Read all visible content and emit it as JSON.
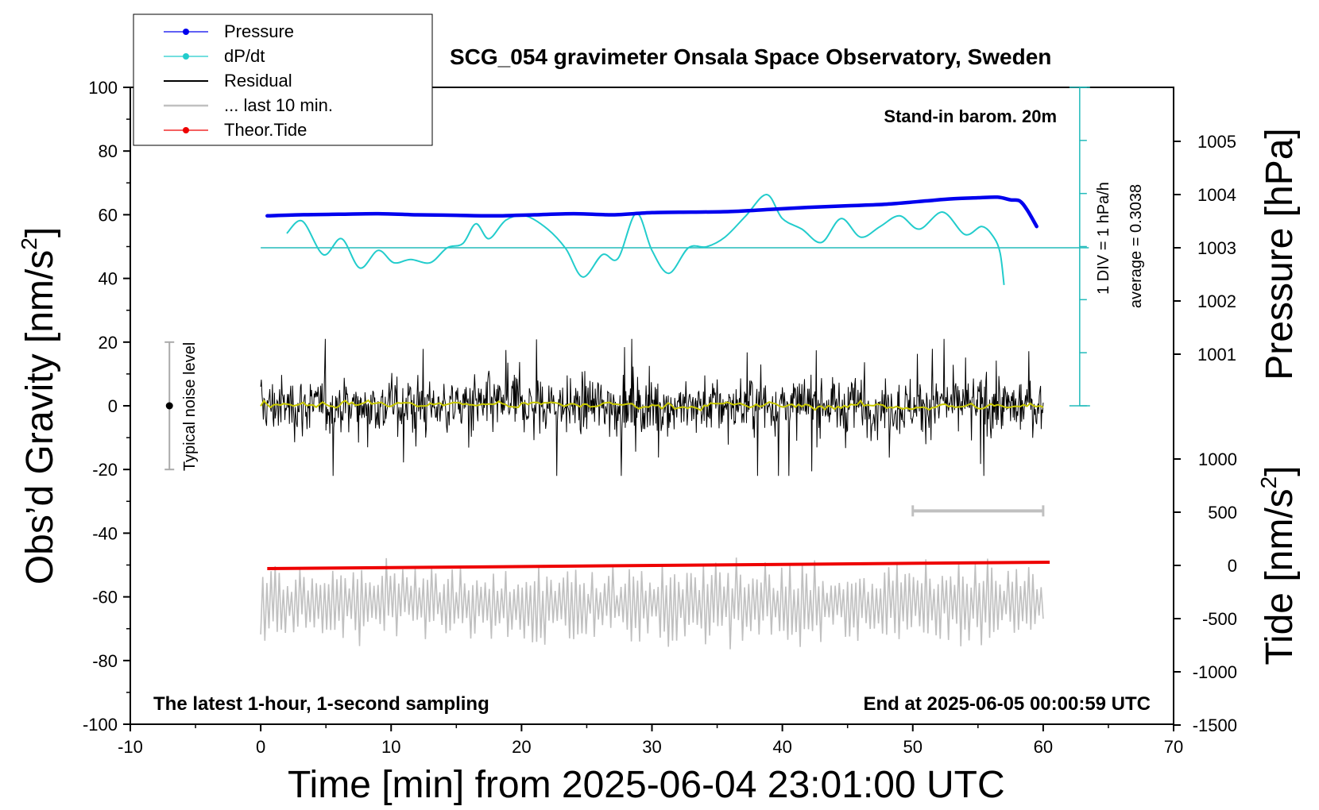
{
  "chart_data": {
    "type": "line",
    "title": "SCG_054 gravimeter Onsala Space Observatory, Sweden",
    "xlabel": "Time [min] from 2025-06-04 23:01:00 UTC",
    "ylabel_left_main": "Obs’d Gravity [nm/s",
    "ylabel_left_sup": "2",
    "ylabel_left_tail": "]",
    "ylabel_pressure": "Pressure [hPa]",
    "ylabel_tide_main": "Tide [nm/s",
    "ylabel_tide_sup": "2",
    "ylabel_tide_tail": "]",
    "xlim": [
      -10,
      70
    ],
    "ylim": [
      -100,
      100
    ],
    "pressure_lim": [
      1000,
      1006
    ],
    "tide_lim": [
      -1500,
      1500
    ],
    "grid": false,
    "legend_placement": "top-left",
    "x_ticks": [
      "-10",
      "0",
      "10",
      "20",
      "30",
      "40",
      "50",
      "60",
      "70"
    ],
    "y_ticks": [
      "100",
      "80",
      "60",
      "40",
      "20",
      "0",
      "-20",
      "-40",
      "-60",
      "-80",
      "-100"
    ],
    "pressure_ticks": [
      "1005",
      "1004",
      "1003",
      "1002",
      "1001"
    ],
    "tide_ticks": [
      "1000",
      "500",
      "0",
      "-500",
      "-1000",
      "-1500"
    ],
    "annotations": {
      "stand_in": "Stand-in barom. 20m",
      "div": "1 DIV = 1 hPa/h",
      "average": "average = 0.3038",
      "noise": "Typical noise level",
      "latest": "The latest 1-hour, 1-second sampling",
      "end": "End at 2025-06-05 00:00:59 UTC"
    },
    "noise_bar": {
      "x": -7,
      "center": 0,
      "low": -20,
      "high": 20
    },
    "last10_bar": {
      "x_start": 50,
      "x_end": 60,
      "y": -33
    },
    "dpdt_baseline_hpa": 1003,
    "series": [
      {
        "name": "Pressure",
        "axis": "pressure",
        "color": "#0000ee",
        "x": [
          0.5,
          3,
          6,
          9,
          12,
          15,
          18,
          21,
          24,
          27,
          30,
          33,
          36,
          39,
          42,
          45,
          48,
          51,
          53,
          55,
          56.5,
          57.5,
          58.2,
          58.8,
          59.5
        ],
        "y": [
          1003.6,
          1003.62,
          1003.63,
          1003.64,
          1003.62,
          1003.61,
          1003.6,
          1003.62,
          1003.64,
          1003.62,
          1003.66,
          1003.67,
          1003.68,
          1003.72,
          1003.76,
          1003.79,
          1003.82,
          1003.88,
          1003.92,
          1003.94,
          1003.95,
          1003.9,
          1003.88,
          1003.7,
          1003.4
        ]
      },
      {
        "name": "dP/dt",
        "axis": "pressure",
        "color": "#22cccc",
        "x": [
          2,
          3.2,
          4.8,
          6.2,
          7.6,
          9,
          10.2,
          11.5,
          13,
          14.3,
          15.5,
          16.5,
          17.5,
          18.8,
          20.3,
          22,
          23.4,
          24.7,
          26.2,
          27.4,
          28.8,
          30,
          31.3,
          32.8,
          34.2,
          35.6,
          37.2,
          38.8,
          40,
          41.5,
          43,
          44.5,
          46,
          47.5,
          49,
          50.5,
          52.3,
          54,
          55.3,
          56.2,
          56.7,
          57
        ],
        "y": [
          1003.27,
          1003.5,
          1002.87,
          1003.17,
          1002.62,
          1002.95,
          1002.72,
          1002.78,
          1002.72,
          1003.0,
          1003.08,
          1003.45,
          1003.17,
          1003.52,
          1003.6,
          1003.35,
          1002.98,
          1002.45,
          1002.87,
          1002.8,
          1003.65,
          1002.95,
          1002.52,
          1003.0,
          1003.02,
          1003.2,
          1003.6,
          1004.0,
          1003.55,
          1003.35,
          1003.1,
          1003.55,
          1003.2,
          1003.4,
          1003.6,
          1003.35,
          1003.67,
          1003.25,
          1003.4,
          1003.2,
          1002.9,
          1002.3
        ]
      },
      {
        "name": "Residual",
        "axis": "gravity",
        "color": "#000000",
        "x_range": [
          0,
          60
        ],
        "samples": 3600,
        "mean": 0,
        "peak_range": [
          -22,
          21
        ]
      },
      {
        "name": "... last 10 min.",
        "axis": "gravity",
        "color": "#c0c0c0",
        "x_range": [
          0,
          60
        ],
        "center": -62,
        "peak_range": [
          -79,
          -45
        ]
      },
      {
        "name": "Theor.Tide",
        "axis": "tide",
        "color": "#ee0000",
        "x": [
          0.5,
          60.5
        ],
        "y": [
          -30,
          30
        ]
      }
    ],
    "smoothed_residual": {
      "color": "#c8c800",
      "mean": 0
    }
  }
}
